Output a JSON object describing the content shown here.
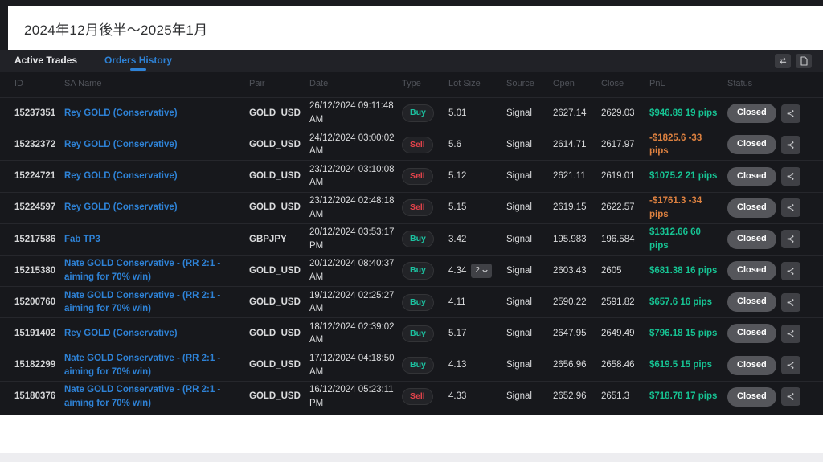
{
  "title_bar": {
    "title": "2024年12月後半～2025年1月"
  },
  "tabs": [
    {
      "label": "Active Trades",
      "active": false
    },
    {
      "label": "Orders History",
      "active": true
    }
  ],
  "toolbar": {
    "icons": [
      "sync-icon",
      "document-icon"
    ]
  },
  "table": {
    "columns": [
      "ID",
      "SA Name",
      "Pair",
      "Date",
      "Type",
      "Lot Size",
      "Source",
      "Open",
      "Close",
      "PnL",
      "Status"
    ],
    "rows": [
      {
        "id": "15237351",
        "sa_name": "Rey GOLD (Conservative)",
        "pair": "GOLD_USD",
        "date": "26/12/2024 09:11:48 AM",
        "type": "Buy",
        "lot_size": "5.01",
        "source": "Signal",
        "open": "2627.14",
        "close": "2629.03",
        "pnl": "$946.89 19 pips",
        "pnl_sign": "positive",
        "status": "Closed"
      },
      {
        "id": "15232372",
        "sa_name": "Rey GOLD (Conservative)",
        "pair": "GOLD_USD",
        "date": "24/12/2024 03:00:02 AM",
        "type": "Sell",
        "lot_size": "5.6",
        "source": "Signal",
        "open": "2614.71",
        "close": "2617.97",
        "pnl": "-$1825.6 -33 pips",
        "pnl_sign": "negative",
        "status": "Closed"
      },
      {
        "id": "15224721",
        "sa_name": "Rey GOLD (Conservative)",
        "pair": "GOLD_USD",
        "date": "23/12/2024 03:10:08 AM",
        "type": "Sell",
        "lot_size": "5.12",
        "source": "Signal",
        "open": "2621.11",
        "close": "2619.01",
        "pnl": "$1075.2 21 pips",
        "pnl_sign": "positive",
        "status": "Closed"
      },
      {
        "id": "15224597",
        "sa_name": "Rey GOLD (Conservative)",
        "pair": "GOLD_USD",
        "date": "23/12/2024 02:48:18 AM",
        "type": "Sell",
        "lot_size": "5.15",
        "source": "Signal",
        "open": "2619.15",
        "close": "2622.57",
        "pnl": "-$1761.3 -34 pips",
        "pnl_sign": "negative",
        "status": "Closed"
      },
      {
        "id": "15217586",
        "sa_name": "Fab TP3",
        "pair": "GBPJPY",
        "date": "20/12/2024 03:53:17 PM",
        "type": "Buy",
        "lot_size": "3.42",
        "source": "Signal",
        "open": "195.983",
        "close": "196.584",
        "pnl": "$1312.66 60 pips",
        "pnl_sign": "positive",
        "status": "Closed"
      },
      {
        "id": "15215380",
        "sa_name": "Nate GOLD Conservative - (RR 2:1 - aiming for 70% win)",
        "pair": "GOLD_USD",
        "date": "20/12/2024 08:40:37 AM",
        "type": "Buy",
        "lot_size": "4.34",
        "lot_group": "2",
        "source": "Signal",
        "open": "2603.43",
        "close": "2605",
        "pnl": "$681.38 16 pips",
        "pnl_sign": "positive",
        "status": "Closed"
      },
      {
        "id": "15200760",
        "sa_name": "Nate GOLD Conservative - (RR 2:1 - aiming for 70% win)",
        "pair": "GOLD_USD",
        "date": "19/12/2024 02:25:27 AM",
        "type": "Buy",
        "lot_size": "4.11",
        "source": "Signal",
        "open": "2590.22",
        "close": "2591.82",
        "pnl": "$657.6 16 pips",
        "pnl_sign": "positive",
        "status": "Closed"
      },
      {
        "id": "15191402",
        "sa_name": "Rey GOLD (Conservative)",
        "pair": "GOLD_USD",
        "date": "18/12/2024 02:39:02 AM",
        "type": "Buy",
        "lot_size": "5.17",
        "source": "Signal",
        "open": "2647.95",
        "close": "2649.49",
        "pnl": "$796.18 15 pips",
        "pnl_sign": "positive",
        "status": "Closed"
      },
      {
        "id": "15182299",
        "sa_name": "Nate GOLD Conservative - (RR 2:1 - aiming for 70% win)",
        "pair": "GOLD_USD",
        "date": "17/12/2024 04:18:50 AM",
        "type": "Buy",
        "lot_size": "4.13",
        "source": "Signal",
        "open": "2656.96",
        "close": "2658.46",
        "pnl": "$619.5 15 pips",
        "pnl_sign": "positive",
        "status": "Closed"
      },
      {
        "id": "15180376",
        "sa_name": "Nate GOLD Conservative - (RR 2:1 - aiming for 70% win)",
        "pair": "GOLD_USD",
        "date": "16/12/2024 05:23:11 PM",
        "type": "Sell",
        "lot_size": "4.33",
        "source": "Signal",
        "open": "2652.96",
        "close": "2651.3",
        "pnl": "$718.78 17 pips",
        "pnl_sign": "positive",
        "status": "Closed"
      }
    ]
  },
  "colors": {
    "accent_blue": "#2e82d6",
    "buy_green": "#1cc1a0",
    "sell_red": "#e4434b",
    "pnl_positive": "#16c393",
    "pnl_negative": "#dd8140",
    "closed_pill": "#55565b"
  }
}
